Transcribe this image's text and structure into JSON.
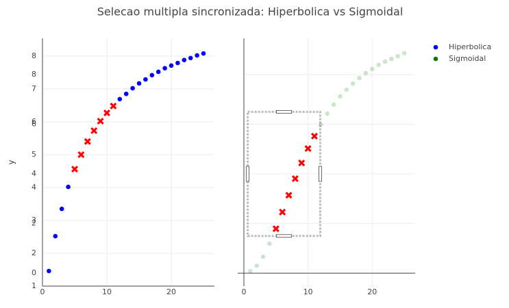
{
  "chart_data": {
    "type": "scatter",
    "title": "Selecao multipla sincronizada: Hiperbolica vs Sigmoidal",
    "y_label": "y",
    "x": [
      1,
      2,
      3,
      4,
      5,
      6,
      7,
      8,
      9,
      10,
      11,
      12,
      13,
      14,
      15,
      16,
      17,
      18,
      19,
      20,
      21,
      22,
      23,
      24,
      25
    ],
    "series": [
      {
        "name": "Hiperbolica",
        "color": "#0000ff",
        "axis": "y",
        "values": [
          1.46,
          2.52,
          3.35,
          4.02,
          4.56,
          5.0,
          5.4,
          5.73,
          6.02,
          6.27,
          6.48,
          6.69,
          6.85,
          7.02,
          7.17,
          7.29,
          7.42,
          7.52,
          7.63,
          7.71,
          7.79,
          7.88,
          7.94,
          8.02,
          8.08
        ]
      },
      {
        "name": "Sigmoidal",
        "color": "#008000",
        "axis": "y2",
        "values": [
          0.08,
          0.3,
          0.66,
          1.19,
          1.79,
          2.46,
          3.14,
          3.81,
          4.44,
          5.02,
          5.52,
          5.99,
          6.43,
          6.79,
          7.12,
          7.39,
          7.64,
          7.86,
          8.06,
          8.22,
          8.39,
          8.52,
          8.63,
          8.74,
          8.86
        ]
      }
    ],
    "selectedpoints": [
      4,
      5,
      6,
      7,
      8,
      9,
      10
    ],
    "selected_color": "#ff0000",
    "selection": {
      "x": [
        0.6,
        11.9
      ],
      "y": [
        1.5,
        6.5
      ]
    },
    "xlim": [
      0,
      26.7
    ],
    "xticks": [
      0,
      10,
      20
    ],
    "ylim": [
      1,
      8.54
    ],
    "yticks": [
      1,
      2,
      3,
      4,
      5,
      6,
      7,
      8
    ],
    "y2lim": [
      -0.52,
      9.46
    ],
    "y2ticks": [
      0,
      2,
      4,
      6,
      8
    ],
    "grid": true,
    "legend": "top-right"
  }
}
